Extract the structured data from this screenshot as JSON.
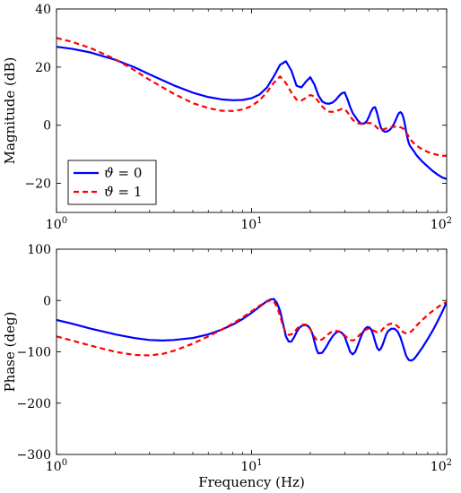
{
  "chart_data": [
    {
      "type": "line",
      "xscale": "log",
      "xlim": [
        1,
        100
      ],
      "ylim": [
        -30,
        40
      ],
      "xlabel": "",
      "ylabel": "Magnitude (dB)",
      "grid": false,
      "legend_position": "bottom-left",
      "x_ticks": [
        {
          "value": 1,
          "base": "10",
          "exp": "0"
        },
        {
          "value": 10,
          "base": "10",
          "exp": "1"
        },
        {
          "value": 100,
          "base": "10",
          "exp": "2"
        }
      ],
      "y_ticks": [
        {
          "value": 40,
          "label": "40"
        },
        {
          "value": 20,
          "label": "20"
        },
        {
          "value": 0,
          "label": "0"
        },
        {
          "value": -20,
          "label": "−20"
        }
      ],
      "series": [
        {
          "name": "ϑ = 0",
          "legend_symbol": "ϑ",
          "legend_rest": " = 0",
          "color": "#0000ff",
          "dash": "solid",
          "x": [
            1,
            1.2,
            1.5,
            2,
            2.5,
            3,
            4,
            5,
            6,
            7,
            8,
            9,
            10,
            11,
            12,
            13,
            14,
            15,
            16,
            17,
            18,
            19,
            20,
            21,
            22,
            23,
            24,
            25,
            26,
            27,
            28,
            29,
            30,
            31,
            32,
            33,
            34,
            35,
            36,
            37,
            38,
            39,
            40,
            41,
            42,
            43,
            44,
            45,
            46,
            47,
            48,
            49,
            50,
            51,
            52,
            53,
            54,
            55,
            56,
            57,
            58,
            59,
            60,
            61,
            62,
            63,
            64,
            65,
            66,
            67,
            68,
            69,
            70,
            75,
            80,
            85,
            90,
            95,
            100
          ],
          "y": [
            27,
            26.3,
            25,
            22.5,
            20,
            17.5,
            13.7,
            11.2,
            9.7,
            8.9,
            8.6,
            8.7,
            9.3,
            10.6,
            13,
            16.8,
            20.8,
            22,
            18.8,
            13.6,
            13,
            15,
            16.5,
            14,
            10.3,
            8.2,
            7.5,
            7.4,
            7.8,
            8.7,
            10,
            11,
            11.3,
            9,
            6.3,
            4.2,
            2.9,
            1.7,
            0.8,
            0.5,
            0.7,
            1.5,
            3,
            4.8,
            6,
            6.2,
            4.2,
            1.5,
            -0.8,
            -1.8,
            -2.2,
            -2.2,
            -2,
            -1.6,
            -1,
            -0.2,
            0.8,
            2,
            3.3,
            4.2,
            4.5,
            4,
            2.7,
            0.5,
            -2.2,
            -4.5,
            -6.2,
            -7.2,
            -7.8,
            -8.4,
            -9,
            -9.6,
            -10.3,
            -12.5,
            -14.2,
            -15.8,
            -17,
            -18,
            -18.5
          ]
        },
        {
          "name": "ϑ = 1",
          "legend_symbol": "ϑ",
          "legend_rest": " = 1",
          "color": "#ff0000",
          "dash": "dashed",
          "x": [
            1,
            1.2,
            1.5,
            2,
            2.5,
            3,
            4,
            5,
            6,
            7,
            8,
            9,
            10,
            11,
            12,
            13,
            14,
            15,
            16,
            17,
            18,
            19,
            20,
            21,
            22,
            23,
            24,
            25,
            26,
            27,
            28,
            29,
            30,
            31,
            32,
            33,
            34,
            35,
            36,
            37,
            38,
            39,
            40,
            41,
            42,
            43,
            44,
            45,
            46,
            47,
            48,
            49,
            50,
            51,
            52,
            53,
            54,
            55,
            56,
            57,
            58,
            59,
            60,
            61,
            62,
            63,
            64,
            65,
            66,
            67,
            68,
            69,
            70,
            75,
            80,
            85,
            90,
            95,
            100
          ],
          "y": [
            30,
            28.7,
            26.5,
            22.7,
            19,
            15.6,
            10.8,
            7.6,
            5.9,
            5.0,
            4.9,
            5.4,
            6.6,
            8.6,
            11.4,
            14.6,
            16.8,
            14.5,
            11.2,
            8.8,
            8.5,
            9.4,
            10.4,
            9.9,
            8.2,
            6.5,
            5.3,
            4.7,
            4.6,
            4.8,
            5.2,
            5.6,
            5.5,
            4.5,
            3.1,
            1.9,
            1.1,
            0.7,
            0.5,
            0.5,
            0.6,
            0.7,
            0.8,
            0.7,
            0.4,
            -0.2,
            -0.9,
            -1.4,
            -1.6,
            -1.5,
            -1.3,
            -1.1,
            -0.9,
            -0.8,
            -0.7,
            -0.6,
            -0.5,
            -0.5,
            -0.5,
            -0.6,
            -0.7,
            -0.9,
            -1.2,
            -1.7,
            -2.4,
            -3.2,
            -4,
            -4.7,
            -5.3,
            -5.8,
            -6.2,
            -6.6,
            -7,
            -8.3,
            -9.2,
            -9.8,
            -10.2,
            -10.5,
            -10.5
          ]
        }
      ]
    },
    {
      "type": "line",
      "xscale": "log",
      "xlim": [
        1,
        100
      ],
      "ylim": [
        -300,
        100
      ],
      "xlabel": "Frequency (Hz)",
      "ylabel": "Phase (deg)",
      "grid": false,
      "x_ticks": [
        {
          "value": 1,
          "base": "10",
          "exp": "0"
        },
        {
          "value": 10,
          "base": "10",
          "exp": "1"
        },
        {
          "value": 100,
          "base": "10",
          "exp": "2"
        }
      ],
      "y_ticks": [
        {
          "value": 100,
          "label": "100"
        },
        {
          "value": 0,
          "label": "0"
        },
        {
          "value": -100,
          "label": "−100"
        },
        {
          "value": -200,
          "label": "−200"
        },
        {
          "value": -300,
          "label": "−300"
        }
      ],
      "series": [
        {
          "color": "#0000ff",
          "dash": "solid",
          "x": [
            1,
            1.2,
            1.5,
            2,
            2.5,
            3,
            3.5,
            4,
            5,
            6,
            7,
            8,
            9,
            10,
            11,
            12,
            12.5,
            13,
            13.5,
            14,
            14.5,
            15,
            15.5,
            16,
            16.5,
            17,
            17.5,
            18,
            18.5,
            19,
            19.5,
            20,
            20.5,
            21,
            21.5,
            22,
            23,
            24,
            25,
            26,
            27,
            28,
            29,
            30,
            31,
            32,
            33,
            34,
            35,
            36,
            37,
            38,
            39,
            40,
            41,
            42,
            43,
            44,
            45,
            46,
            47,
            48,
            49,
            50,
            52,
            54,
            56,
            58,
            60,
            62,
            64,
            66,
            68,
            70,
            75,
            80,
            85,
            90,
            95,
            100
          ],
          "y": [
            -38,
            -45,
            -55,
            -66,
            -73,
            -77,
            -78,
            -77,
            -73,
            -66,
            -57,
            -47,
            -36,
            -24,
            -12,
            -1,
            2,
            3,
            -5,
            -20,
            -45,
            -70,
            -80,
            -80,
            -72,
            -62,
            -54,
            -50,
            -48,
            -48,
            -50,
            -55,
            -65,
            -80,
            -95,
            -103,
            -102,
            -92,
            -80,
            -70,
            -63,
            -60,
            -63,
            -70,
            -85,
            -100,
            -105,
            -100,
            -88,
            -75,
            -64,
            -56,
            -52,
            -52,
            -56,
            -66,
            -80,
            -92,
            -97,
            -94,
            -86,
            -76,
            -66,
            -60,
            -55,
            -55,
            -60,
            -72,
            -90,
            -108,
            -116,
            -117,
            -114,
            -108,
            -92,
            -75,
            -58,
            -40,
            -22,
            -3
          ]
        },
        {
          "color": "#ff0000",
          "dash": "dashed",
          "x": [
            1,
            1.2,
            1.5,
            2,
            2.5,
            3,
            3.5,
            4,
            5,
            6,
            7,
            8,
            9,
            10,
            11,
            12,
            12.5,
            13,
            13.5,
            14,
            14.5,
            15,
            15.5,
            16,
            16.5,
            17,
            17.5,
            18,
            18.5,
            19,
            19.5,
            20,
            20.5,
            21,
            21.5,
            22,
            23,
            24,
            25,
            26,
            27,
            28,
            29,
            30,
            31,
            32,
            33,
            34,
            35,
            36,
            37,
            38,
            39,
            40,
            41,
            42,
            43,
            44,
            45,
            46,
            47,
            48,
            49,
            50,
            52,
            54,
            56,
            58,
            60,
            62,
            64,
            66,
            68,
            70,
            75,
            80,
            85,
            90,
            95,
            100
          ],
          "y": [
            -70,
            -78,
            -88,
            -100,
            -106,
            -107,
            -104,
            -98,
            -84,
            -70,
            -57,
            -45,
            -33,
            -21,
            -10,
            -2,
            0,
            -2,
            -12,
            -30,
            -50,
            -63,
            -67,
            -66,
            -62,
            -56,
            -51,
            -48,
            -47,
            -47,
            -50,
            -56,
            -64,
            -71,
            -76,
            -78,
            -76,
            -70,
            -64,
            -60,
            -59,
            -60,
            -63,
            -68,
            -73,
            -77,
            -78,
            -76,
            -71,
            -66,
            -62,
            -58,
            -56,
            -55,
            -56,
            -58,
            -60,
            -62,
            -62,
            -60,
            -56,
            -52,
            -49,
            -47,
            -45,
            -46,
            -50,
            -56,
            -62,
            -64,
            -63,
            -60,
            -55,
            -49,
            -38,
            -28,
            -20,
            -13,
            -7,
            -3
          ]
        }
      ]
    }
  ]
}
